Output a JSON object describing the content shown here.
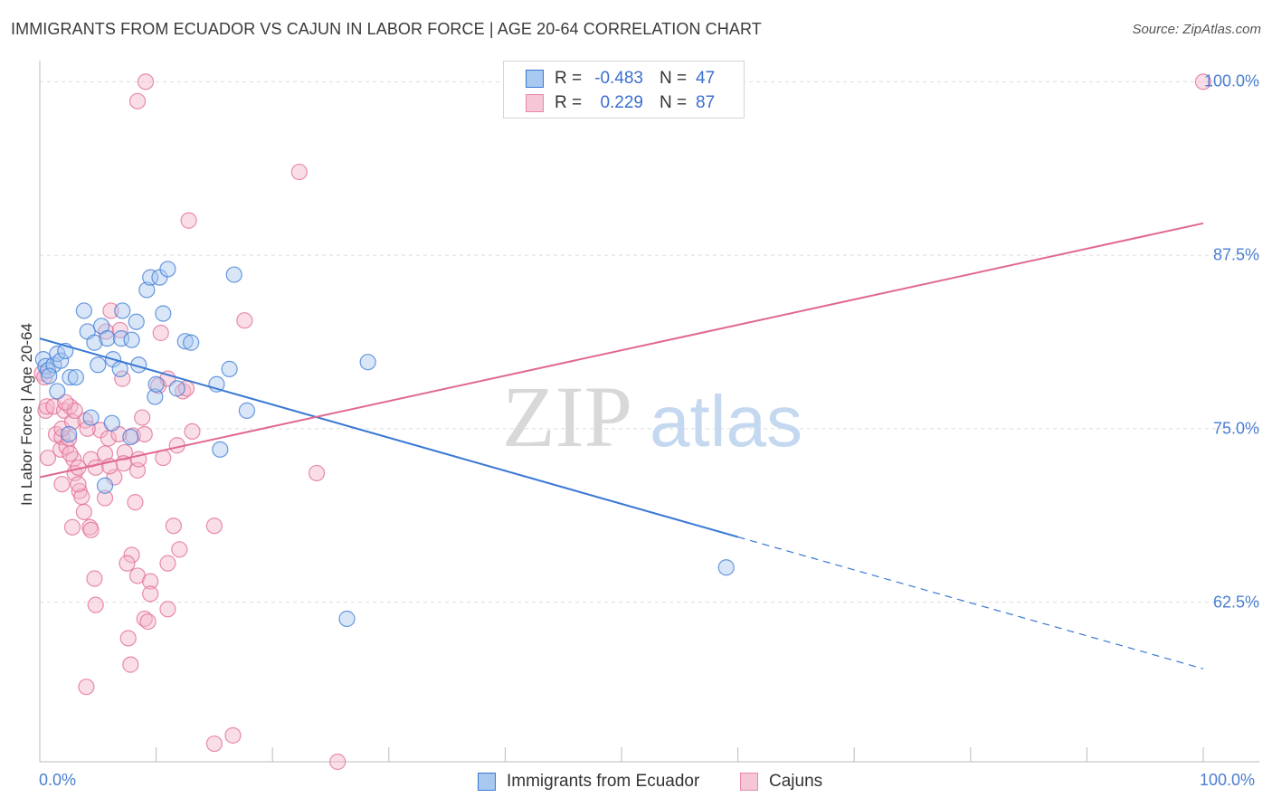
{
  "title": "IMMIGRANTS FROM ECUADOR VS CAJUN IN LABOR FORCE | AGE 20-64 CORRELATION CHART",
  "source": "Source: ZipAtlas.com",
  "watermark": {
    "zip": "ZIP",
    "atlas": "atlas"
  },
  "legend": {
    "rows": [
      {
        "r_label": "R =",
        "r_value": "-0.483",
        "n_label": "N =",
        "n_value": "47"
      },
      {
        "r_label": "R =",
        "r_value": "0.229",
        "n_label": "N =",
        "n_value": "87"
      }
    ]
  },
  "bottom_legend": [
    "Immigrants from Ecuador",
    "Cajuns"
  ],
  "colors": {
    "blue": "#3a78d4",
    "blue_fill": "#a8c8f0",
    "pink": "#e06891",
    "pink_fill": "#f4b6ca"
  },
  "chart_data": {
    "type": "scatter",
    "title": "IMMIGRANTS FROM ECUADOR VS CAJUN IN LABOR FORCE | AGE 20-64 CORRELATION CHART",
    "xlabel": "",
    "ylabel": "In Labor Force | Age 20-64",
    "xlim": [
      0,
      100
    ],
    "ylim": [
      51,
      101
    ],
    "x_tick_labels": [
      "0.0%",
      "100.0%"
    ],
    "y_ticks": [
      {
        "value": 100,
        "label": "100.0%"
      },
      {
        "value": 87.5,
        "label": "87.5%"
      },
      {
        "value": 75,
        "label": "75.0%"
      },
      {
        "value": 62.5,
        "label": "62.5%"
      }
    ],
    "series": [
      {
        "name": "Immigrants from Ecuador",
        "color": "#3a78d4",
        "points": [
          [
            0.3,
            80.0
          ],
          [
            0.5,
            79.5
          ],
          [
            0.7,
            79.2
          ],
          [
            1.2,
            79.6
          ],
          [
            1.5,
            80.4
          ],
          [
            1.8,
            79.9
          ],
          [
            2.2,
            80.6
          ],
          [
            2.6,
            78.7
          ],
          [
            3.1,
            78.7
          ],
          [
            1.5,
            77.7
          ],
          [
            2.5,
            74.6
          ],
          [
            3.8,
            83.5
          ],
          [
            4.1,
            82.0
          ],
          [
            4.7,
            81.2
          ],
          [
            5.0,
            79.6
          ],
          [
            5.3,
            82.4
          ],
          [
            5.8,
            81.5
          ],
          [
            6.3,
            80.0
          ],
          [
            7.0,
            81.5
          ],
          [
            6.9,
            79.3
          ],
          [
            7.1,
            83.5
          ],
          [
            7.9,
            81.4
          ],
          [
            8.3,
            82.7
          ],
          [
            8.5,
            79.6
          ],
          [
            9.2,
            85.0
          ],
          [
            9.5,
            85.9
          ],
          [
            10.3,
            85.9
          ],
          [
            10.6,
            83.3
          ],
          [
            11.0,
            86.5
          ],
          [
            12.5,
            81.3
          ],
          [
            13.0,
            81.2
          ],
          [
            9.9,
            77.3
          ],
          [
            10.0,
            78.2
          ],
          [
            11.8,
            77.9
          ],
          [
            15.2,
            78.2
          ],
          [
            16.3,
            79.3
          ],
          [
            16.7,
            86.1
          ],
          [
            17.8,
            76.3
          ],
          [
            4.4,
            75.8
          ],
          [
            6.2,
            75.4
          ],
          [
            5.6,
            70.9
          ],
          [
            7.8,
            74.4
          ],
          [
            15.5,
            73.5
          ],
          [
            28.2,
            79.8
          ],
          [
            26.4,
            61.3
          ],
          [
            59.0,
            65.0
          ],
          [
            0.8,
            78.8
          ]
        ],
        "trend": {
          "x0": 0,
          "y0": 81.5,
          "x1": 60,
          "y1": 67.2,
          "dashed_to_x": 100,
          "dashed_to_y": 57.7
        }
      },
      {
        "name": "Cajuns",
        "color": "#e06891",
        "points": [
          [
            0.2,
            79.0
          ],
          [
            0.4,
            78.7
          ],
          [
            0.5,
            76.3
          ],
          [
            0.6,
            76.6
          ],
          [
            0.7,
            72.9
          ],
          [
            1.2,
            76.6
          ],
          [
            1.4,
            74.6
          ],
          [
            1.8,
            73.5
          ],
          [
            1.9,
            74.4
          ],
          [
            2.1,
            76.3
          ],
          [
            2.3,
            73.7
          ],
          [
            2.5,
            74.3
          ],
          [
            1.9,
            71.0
          ],
          [
            2.6,
            76.6
          ],
          [
            2.9,
            72.8
          ],
          [
            3.0,
            71.8
          ],
          [
            3.3,
            72.2
          ],
          [
            3.4,
            70.5
          ],
          [
            3.6,
            70.1
          ],
          [
            3.8,
            69.0
          ],
          [
            2.8,
            67.9
          ],
          [
            4.3,
            67.9
          ],
          [
            4.4,
            67.7
          ],
          [
            4.7,
            64.2
          ],
          [
            4.8,
            62.3
          ],
          [
            3.9,
            75.6
          ],
          [
            4.4,
            72.8
          ],
          [
            4.8,
            72.2
          ],
          [
            5.2,
            74.9
          ],
          [
            5.9,
            74.3
          ],
          [
            5.7,
            82.0
          ],
          [
            6.1,
            83.5
          ],
          [
            6.9,
            82.1
          ],
          [
            7.1,
            78.6
          ],
          [
            7.3,
            73.3
          ],
          [
            6.4,
            71.5
          ],
          [
            7.2,
            72.5
          ],
          [
            8.0,
            74.5
          ],
          [
            8.4,
            72.0
          ],
          [
            8.2,
            69.7
          ],
          [
            8.5,
            72.8
          ],
          [
            8.8,
            75.8
          ],
          [
            9.0,
            74.6
          ],
          [
            7.9,
            65.9
          ],
          [
            7.5,
            65.3
          ],
          [
            8.4,
            64.4
          ],
          [
            9.5,
            64.0
          ],
          [
            9.5,
            63.1
          ],
          [
            9.0,
            61.3
          ],
          [
            9.3,
            61.1
          ],
          [
            7.6,
            59.9
          ],
          [
            7.8,
            58.0
          ],
          [
            4.0,
            56.4
          ],
          [
            8.4,
            98.6
          ],
          [
            9.1,
            100.0
          ],
          [
            10.2,
            78.1
          ],
          [
            10.4,
            81.9
          ],
          [
            11.0,
            78.6
          ],
          [
            10.6,
            72.9
          ],
          [
            11.8,
            73.8
          ],
          [
            11.0,
            65.3
          ],
          [
            12.0,
            66.3
          ],
          [
            11.5,
            68.0
          ],
          [
            11.0,
            62.0
          ],
          [
            12.3,
            77.7
          ],
          [
            12.6,
            77.9
          ],
          [
            12.8,
            90.0
          ],
          [
            13.1,
            74.8
          ],
          [
            15.0,
            68.0
          ],
          [
            15.0,
            52.3
          ],
          [
            16.6,
            52.9
          ],
          [
            17.6,
            82.8
          ],
          [
            22.3,
            93.5
          ],
          [
            23.8,
            71.8
          ],
          [
            25.6,
            51.0
          ],
          [
            100.0,
            100.0
          ],
          [
            4.1,
            75.0
          ],
          [
            5.6,
            73.2
          ],
          [
            6.8,
            74.6
          ],
          [
            3.3,
            71.0
          ],
          [
            2.6,
            73.2
          ],
          [
            5.6,
            70.0
          ],
          [
            6.0,
            72.3
          ],
          [
            1.9,
            75.0
          ],
          [
            2.8,
            75.5
          ],
          [
            3.0,
            76.3
          ],
          [
            2.2,
            76.9
          ]
        ],
        "trend": {
          "x0": 0,
          "y0": 71.5,
          "x1": 100,
          "y1": 89.8
        }
      }
    ]
  }
}
